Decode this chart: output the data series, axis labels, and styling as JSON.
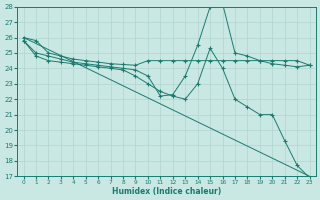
{
  "xlabel": "Humidex (Indice chaleur)",
  "xlim": [
    -0.5,
    23.5
  ],
  "ylim": [
    17,
    28
  ],
  "yticks": [
    17,
    18,
    19,
    20,
    21,
    22,
    23,
    24,
    25,
    26,
    27,
    28
  ],
  "xticks": [
    0,
    1,
    2,
    3,
    4,
    5,
    6,
    7,
    8,
    9,
    10,
    11,
    12,
    13,
    14,
    15,
    16,
    17,
    18,
    19,
    20,
    21,
    22,
    23
  ],
  "bg_color": "#c9e8e4",
  "grid_color": "#b0d4d0",
  "line_color": "#1a7a6e",
  "lines": [
    {
      "x": [
        0,
        1,
        2,
        3,
        4,
        5,
        6,
        7,
        8,
        9,
        10,
        11,
        12,
        13,
        14,
        15,
        16,
        17,
        18,
        19,
        20,
        21,
        22,
        23
      ],
      "y": [
        26.0,
        25.8,
        25.0,
        24.8,
        24.6,
        24.5,
        24.4,
        24.3,
        24.25,
        24.2,
        24.5,
        24.5,
        24.5,
        24.5,
        24.5,
        24.5,
        24.5,
        24.5,
        24.5,
        24.5,
        24.5,
        24.5,
        24.5,
        24.2
      ],
      "marker": true
    },
    {
      "x": [
        0,
        1,
        2,
        3,
        4,
        5,
        6,
        7,
        8,
        9,
        10,
        11,
        12,
        13,
        14,
        15,
        16,
        17,
        18,
        19,
        20,
        21,
        22,
        23
      ],
      "y": [
        25.8,
        25.0,
        24.8,
        24.6,
        24.4,
        24.3,
        24.2,
        24.1,
        24.0,
        23.9,
        23.5,
        22.2,
        22.3,
        23.5,
        25.5,
        28.0,
        28.2,
        25.0,
        24.8,
        24.5,
        24.3,
        24.2,
        24.1,
        24.2
      ],
      "marker": true
    },
    {
      "x": [
        0,
        23
      ],
      "y": [
        26.0,
        17.0
      ],
      "marker": false
    },
    {
      "x": [
        0,
        1,
        2,
        3,
        4,
        5,
        6,
        7,
        8,
        9,
        10,
        11,
        12,
        13,
        14,
        15,
        16,
        17,
        18,
        19,
        20,
        21,
        22,
        23
      ],
      "y": [
        25.8,
        24.8,
        24.5,
        24.4,
        24.3,
        24.2,
        24.1,
        24.0,
        23.9,
        23.5,
        23.0,
        22.5,
        22.2,
        22.0,
        23.0,
        25.3,
        24.0,
        22.0,
        21.5,
        21.0,
        21.0,
        19.3,
        17.7,
        16.9
      ],
      "marker": true
    }
  ]
}
